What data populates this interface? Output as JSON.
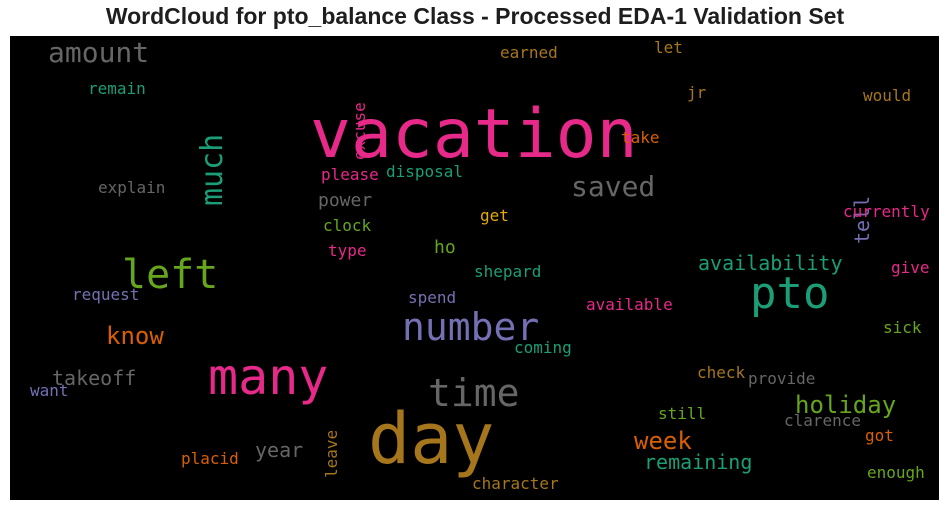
{
  "title": "WordCloud for pto_balance Class - Processed EDA-1 Validation Set",
  "colors": {
    "pink": "#e7298a",
    "teal": "#1b9e77",
    "gold": "#a6761d",
    "green": "#66a61e",
    "orange": "#d95f02",
    "purple": "#7570b3",
    "gray": "#666666",
    "yellow": "#e6ab02"
  },
  "words": [
    "vacation",
    "day",
    "many",
    "pto",
    "number",
    "time",
    "left",
    "saved",
    "amount",
    "much",
    "holiday",
    "know",
    "week",
    "remaining",
    "availability",
    "takeoff",
    "year",
    "power",
    "tell",
    "ho",
    "currently",
    "explain",
    "remain",
    "earned",
    "let",
    "excuse",
    "would",
    "jr",
    "take",
    "please",
    "disposal",
    "get",
    "clock",
    "type",
    "shepard",
    "give",
    "request",
    "spend",
    "available",
    "coming",
    "sick",
    "want",
    "leave",
    "check",
    "provide",
    "still",
    "clarence",
    "got",
    "placid",
    "enough",
    "character"
  ]
}
